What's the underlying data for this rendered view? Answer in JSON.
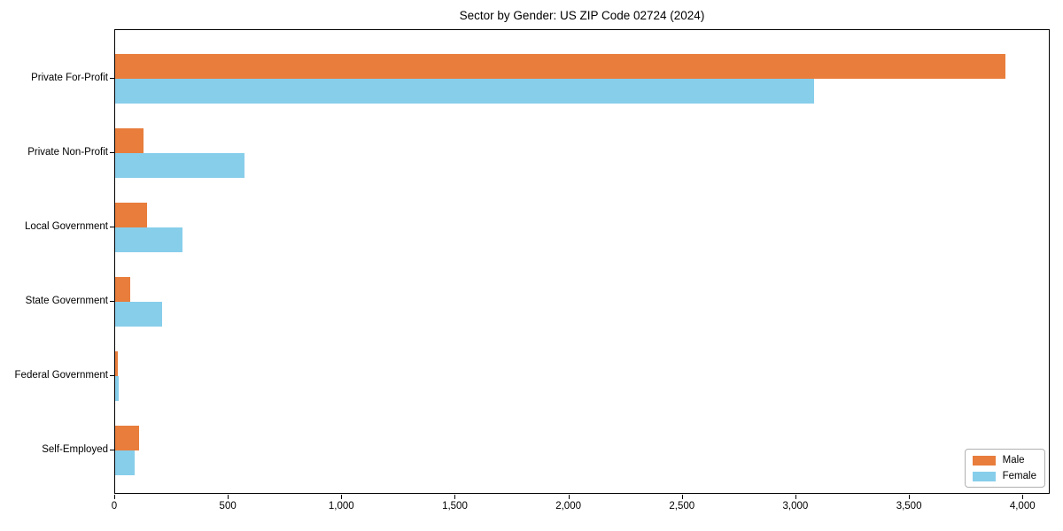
{
  "title": "Sector by Gender: US ZIP Code 02724 (2024)",
  "colors": {
    "male": "#e87d3c",
    "female": "#87ceeb",
    "axis": "#000000",
    "legend_border": "#b0b0b0",
    "background": "#ffffff"
  },
  "legend": {
    "position": "lower right",
    "items": [
      {
        "label": "Male",
        "color_key": "male"
      },
      {
        "label": "Female",
        "color_key": "female"
      }
    ]
  },
  "chart_data": {
    "type": "bar",
    "orientation": "horizontal",
    "title": "Sector by Gender: US ZIP Code 02724 (2024)",
    "categories": [
      "Private For-Profit",
      "Private Non-Profit",
      "Local Government",
      "State Government",
      "Federal Government",
      "Self-Employed"
    ],
    "series": [
      {
        "name": "Male",
        "color": "#e87d3c",
        "values": [
          3920,
          125,
          140,
          68,
          10,
          107
        ]
      },
      {
        "name": "Female",
        "color": "#87ceeb",
        "values": [
          3080,
          570,
          295,
          205,
          15,
          87
        ]
      }
    ],
    "xlabel": "",
    "ylabel": "",
    "xlim": [
      0,
      4120
    ],
    "x_ticks": [
      {
        "value": 0,
        "label": "0"
      },
      {
        "value": 500,
        "label": "500"
      },
      {
        "value": 1000,
        "label": "1,000"
      },
      {
        "value": 1500,
        "label": "1,500"
      },
      {
        "value": 2000,
        "label": "2,000"
      },
      {
        "value": 2500,
        "label": "2,500"
      },
      {
        "value": 3000,
        "label": "3,000"
      },
      {
        "value": 3500,
        "label": "3,500"
      },
      {
        "value": 4000,
        "label": "4,000"
      }
    ],
    "grid": false,
    "legend_position": "lower right"
  }
}
